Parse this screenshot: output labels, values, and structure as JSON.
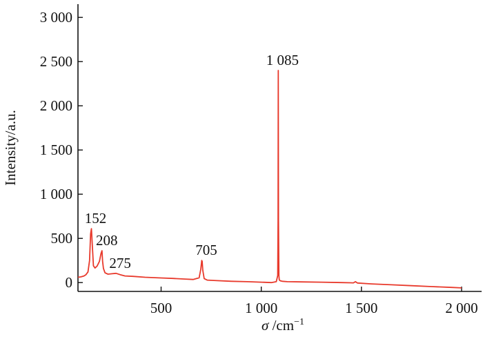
{
  "chart_data": {
    "type": "line",
    "title": "",
    "xlabel_symbol": "σ",
    "xlabel_unit": " /cm",
    "xlabel_sup": "−1",
    "ylabel": "Intensity/a.u.",
    "xlim": [
      85,
      2100
    ],
    "ylim": [
      -100,
      3150
    ],
    "x_ticks": [
      500,
      1000,
      1500,
      2000
    ],
    "x_tick_labels": [
      "500",
      "1 000",
      "1 500",
      "2 000"
    ],
    "y_ticks": [
      0,
      500,
      1000,
      1500,
      2000,
      2500,
      3000
    ],
    "y_tick_labels": [
      "0",
      "500",
      "1 000",
      "1 500",
      "2 000",
      "2 500",
      "3 000"
    ],
    "grid": false,
    "line_color": "#e8392b",
    "series": [
      {
        "x": [
          85,
          100,
          115,
          125,
          135,
          143,
          148,
          152,
          156,
          162,
          170,
          180,
          192,
          200,
          205,
          208,
          212,
          220,
          235,
          255,
          275,
          295,
          320,
          360,
          420,
          500,
          560,
          620,
          660,
          690,
          698,
          703,
          705,
          708,
          715,
          730,
          780,
          850,
          930,
          1000,
          1050,
          1075,
          1082,
          1084,
          1085,
          1086,
          1088,
          1090,
          1095,
          1105,
          1130,
          1200,
          1300,
          1400,
          1460,
          1470,
          1480,
          1550,
          1650,
          1750,
          1850,
          1950,
          2000
        ],
        "y": [
          60,
          65,
          75,
          90,
          120,
          250,
          550,
          610,
          450,
          190,
          165,
          185,
          240,
          330,
          360,
          240,
          160,
          110,
          95,
          100,
          105,
          90,
          75,
          70,
          60,
          52,
          47,
          40,
          35,
          55,
          150,
          250,
          240,
          140,
          45,
          28,
          22,
          15,
          10,
          5,
          0,
          10,
          80,
          700,
          2400,
          700,
          80,
          30,
          20,
          15,
          10,
          8,
          5,
          0,
          -3,
          10,
          -5,
          -15,
          -25,
          -35,
          -45,
          -55,
          -60
        ]
      }
    ],
    "annotations": [
      {
        "text": "152",
        "x": 152,
        "y": 610
      },
      {
        "text": "208",
        "x": 208,
        "y": 360
      },
      {
        "text": "275",
        "x": 275,
        "y": 105
      },
      {
        "text": "705",
        "x": 705,
        "y": 250
      },
      {
        "text": "1 085",
        "x": 1085,
        "y": 2400
      }
    ]
  }
}
